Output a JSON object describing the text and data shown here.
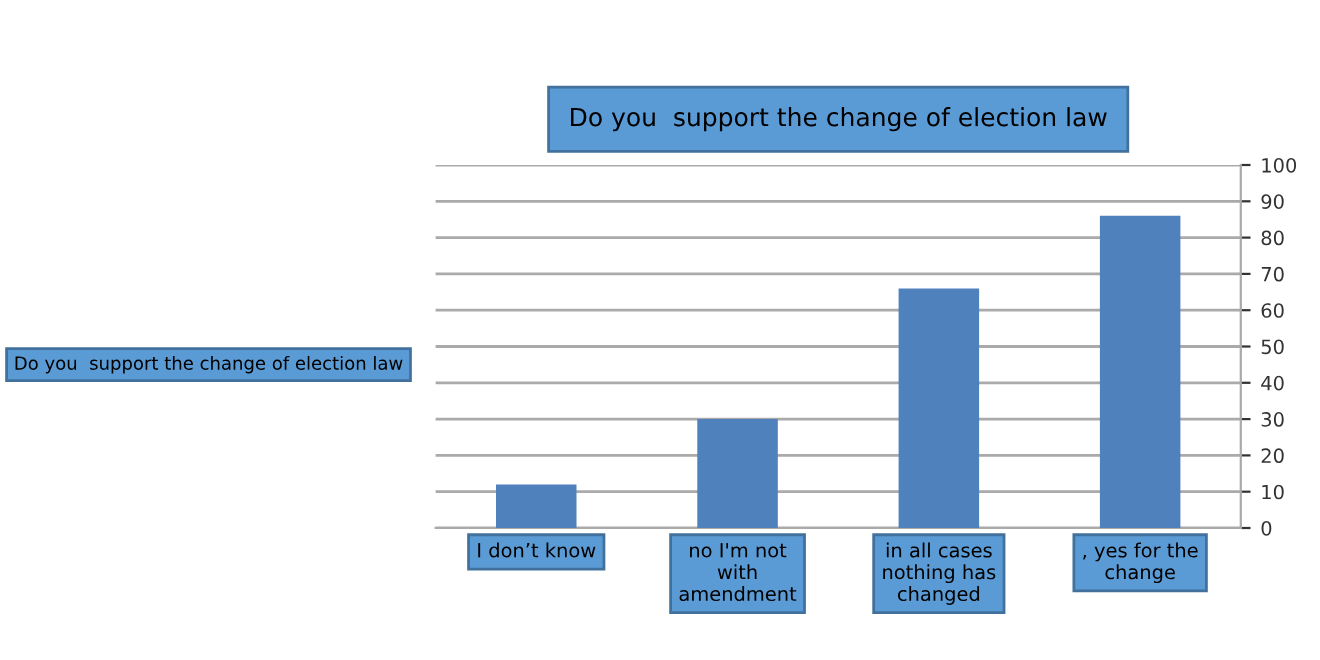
{
  "chart_data": {
    "type": "bar",
    "title": "Do you  support the change of election law",
    "categories": [
      "I don’t know",
      "no I'm not with amendment",
      "in all cases nothing has changed",
      ", yes for the change"
    ],
    "series": [
      {
        "name": "Do you  support the change of election law",
        "color": "#4f81bd",
        "values": [
          12,
          30,
          66,
          86
        ]
      }
    ],
    "ylim": [
      0,
      100
    ],
    "yticks": [
      0,
      10,
      20,
      30,
      40,
      50,
      60,
      70,
      80,
      90,
      100
    ],
    "grid": "y",
    "legend": "left"
  }
}
